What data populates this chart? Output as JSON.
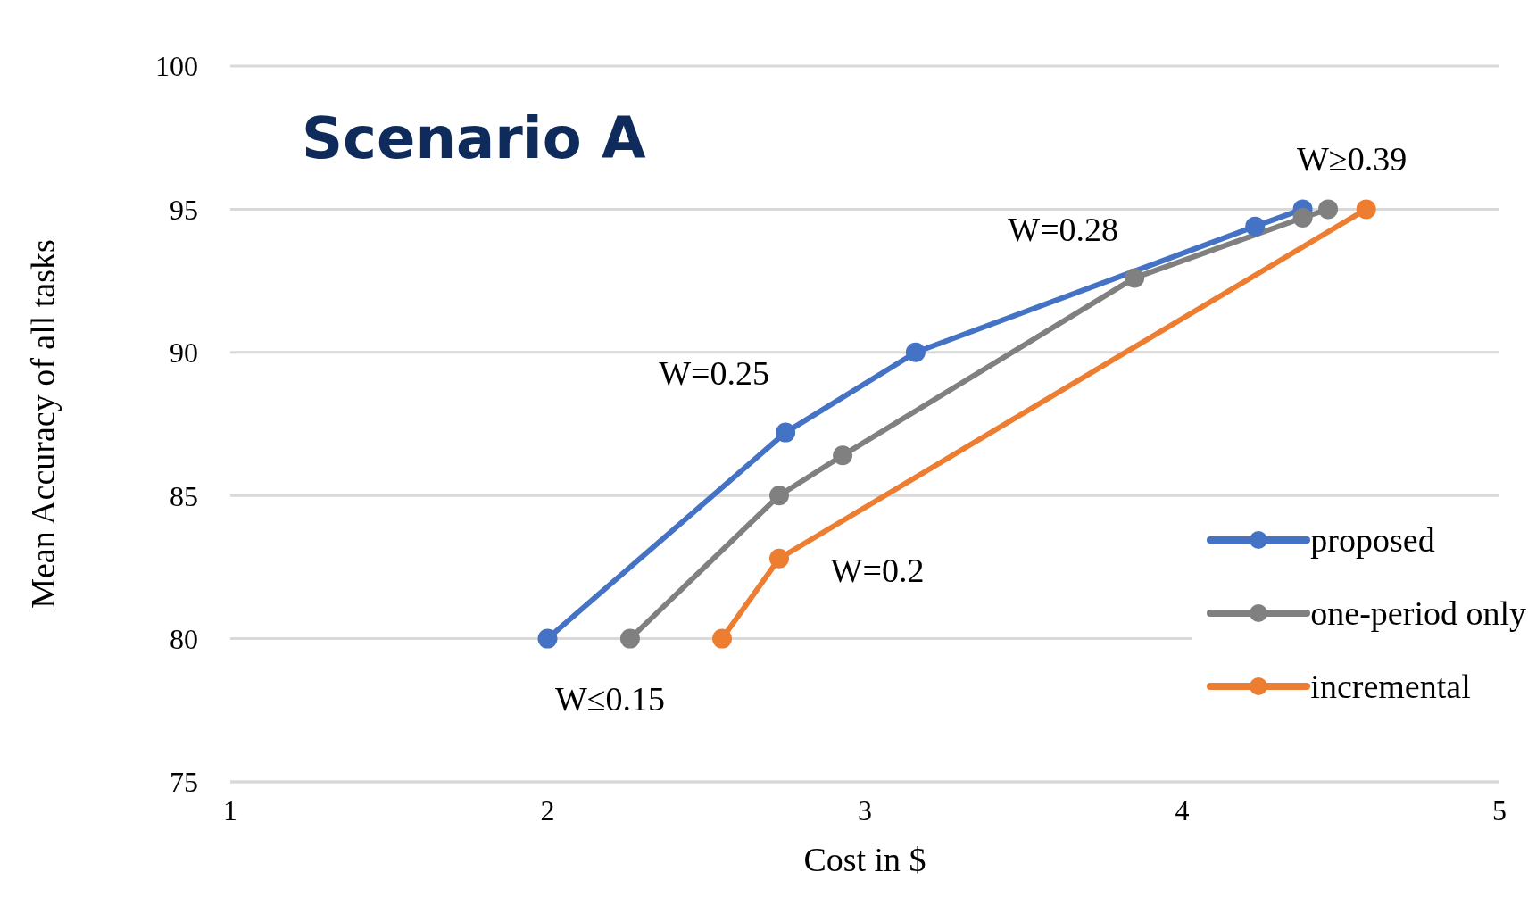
{
  "chart_data": {
    "type": "line",
    "title": "Scenario A",
    "xlabel": "Cost in $",
    "ylabel": "Mean Accuracy of all tasks",
    "xlim": [
      1,
      5
    ],
    "xticks": [
      1,
      2,
      3,
      4,
      5
    ],
    "ylim": [
      75,
      100
    ],
    "yticks": [
      75,
      80,
      85,
      90,
      95,
      100
    ],
    "grid": "y",
    "legend": "bottom right",
    "marker": "circle",
    "line_style": "solid",
    "series": [
      {
        "name": "proposed",
        "color": "#4472c4",
        "x": [
          2.0,
          2.75,
          3.16,
          4.23,
          4.38
        ],
        "values": [
          80,
          87.2,
          90.0,
          94.4,
          95
        ]
      },
      {
        "name": "one-period only",
        "color": "#808080",
        "x": [
          2.26,
          2.73,
          2.93,
          3.85,
          4.38,
          4.46
        ],
        "values": [
          80,
          85.0,
          86.4,
          92.6,
          94.7,
          95
        ]
      },
      {
        "name": "incremental",
        "color": "#ed7d31",
        "x": [
          2.55,
          2.73,
          4.58
        ],
        "values": [
          80,
          82.8,
          95
        ]
      }
    ],
    "annotations": [
      {
        "text": "W≤0.15",
        "x": 2.0,
        "y": 80
      },
      {
        "text": "W=0.25",
        "x": 2.75,
        "y": 87.2
      },
      {
        "text": "W=0.2",
        "x": 2.73,
        "y": 82.8
      },
      {
        "text": "W=0.28",
        "x": 3.85,
        "y": 92.6
      },
      {
        "text": "W≥0.39",
        "x": 4.38,
        "y": 95
      }
    ]
  }
}
